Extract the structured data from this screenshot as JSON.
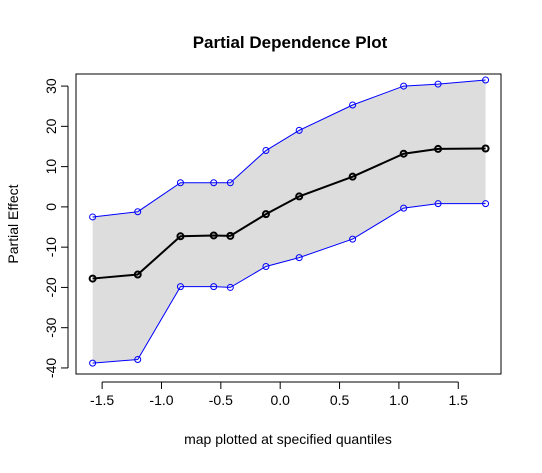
{
  "chart_data": {
    "type": "line",
    "title": "Partial Dependence Plot",
    "xlabel": "map plotted at specified quantiles",
    "ylabel": "Partial Effect",
    "xlim": [
      -1.72,
      1.86
    ],
    "ylim": [
      -41.5,
      33
    ],
    "x_ticks": [
      -1.5,
      -1.0,
      -0.5,
      0.0,
      0.5,
      1.0,
      1.5
    ],
    "x_tick_labels": [
      "-1.5",
      "-1.0",
      "-0.5",
      "0.0",
      "0.5",
      "1.0",
      "1.5"
    ],
    "y_ticks": [
      -40,
      -30,
      -20,
      -10,
      0,
      10,
      20,
      30
    ],
    "y_tick_labels": [
      "-40",
      "-30",
      "-20",
      "-10",
      "0",
      "10",
      "20",
      "30"
    ],
    "grid": false,
    "x": [
      -1.58,
      -1.2,
      -0.84,
      -0.56,
      -0.42,
      -0.12,
      0.16,
      0.61,
      1.04,
      1.33,
      1.73
    ],
    "series": [
      {
        "name": "",
        "role": "upper",
        "color": "#0000ff",
        "values": [
          -2.5,
          -1.2,
          6.0,
          6.0,
          6.0,
          14.0,
          19.0,
          25.3,
          30.0,
          30.5,
          31.5
        ]
      },
      {
        "name": "",
        "role": "estimate",
        "color": "#000000",
        "values": [
          -17.8,
          -16.8,
          -7.3,
          -7.1,
          -7.2,
          -1.8,
          2.6,
          7.5,
          13.2,
          14.4,
          14.5
        ]
      },
      {
        "name": "",
        "role": "lower",
        "color": "#0000ff",
        "values": [
          -38.8,
          -37.9,
          -19.8,
          -19.8,
          -20.0,
          -14.8,
          -12.6,
          -8.0,
          -0.3,
          0.8,
          0.8
        ]
      }
    ],
    "band_fill": "#dddddd"
  }
}
